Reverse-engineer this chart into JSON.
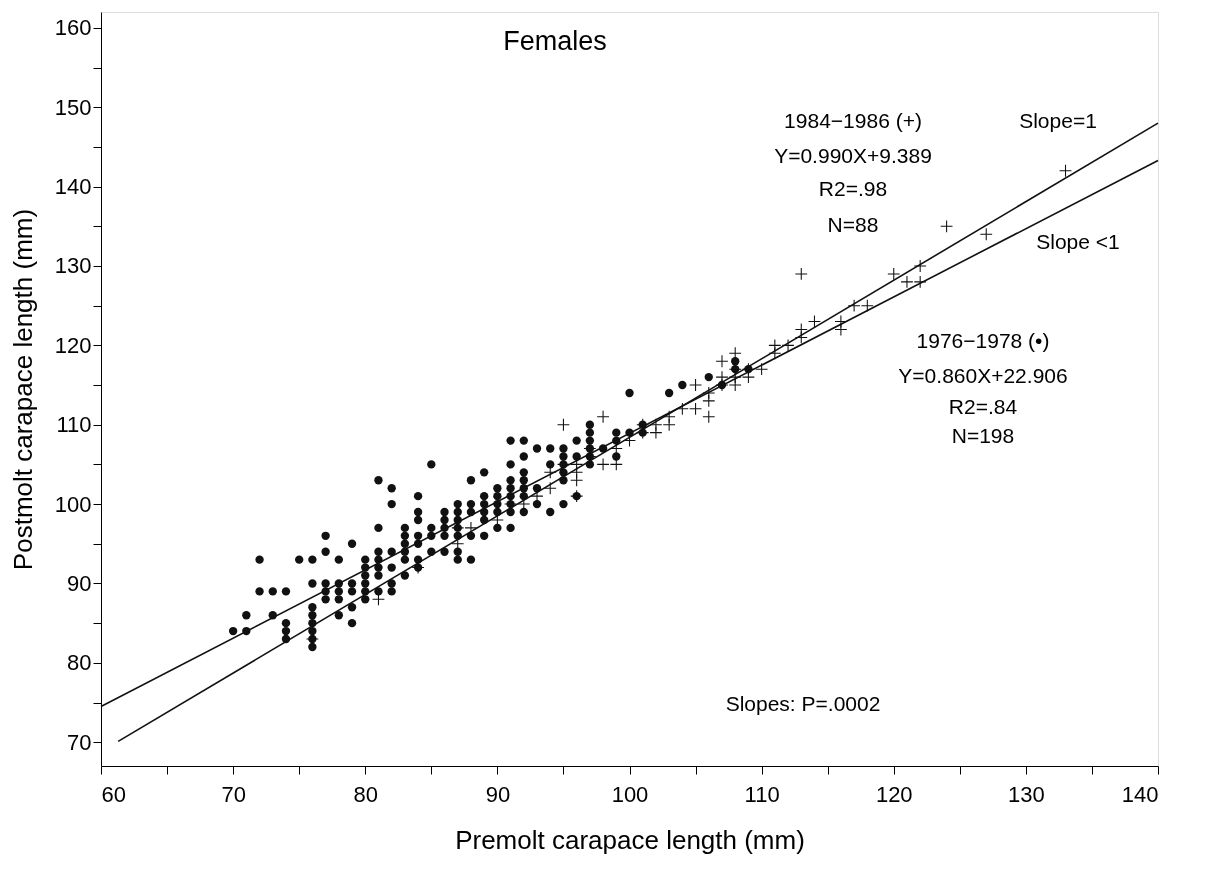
{
  "chart_data": {
    "type": "scatter",
    "title": "Females",
    "xlabel": "Premolt carapace length (mm)",
    "ylabel": "Postmolt carapace length (mm)",
    "xlim": [
      60,
      140
    ],
    "ylim": [
      67,
      162
    ],
    "xticks": [
      60,
      {
        "value": 65,
        "label": null
      },
      70,
      {
        "value": 75,
        "label": null
      },
      80,
      {
        "value": 85,
        "label": null
      },
      90,
      {
        "value": 95,
        "label": null
      },
      100,
      {
        "value": 105,
        "label": null
      },
      110,
      {
        "value": 115,
        "label": null
      },
      120,
      {
        "value": 125,
        "label": null
      },
      130,
      {
        "value": 135,
        "label": null
      },
      140
    ],
    "yticks": [
      70,
      {
        "value": 75,
        "label": null
      },
      80,
      {
        "value": 85,
        "label": null
      },
      90,
      {
        "value": 95,
        "label": null
      },
      100,
      {
        "value": 105,
        "label": null
      },
      110,
      {
        "value": 115,
        "label": null
      },
      120,
      {
        "value": 125,
        "label": null
      },
      130,
      {
        "value": 135,
        "label": null
      },
      140,
      {
        "value": 145,
        "label": null
      },
      150,
      {
        "value": 155,
        "label": null
      },
      160
    ],
    "grid": false,
    "series": [
      {
        "type": "scatter",
        "marker": "circle",
        "color": "#111111",
        "x": [
          70,
          71,
          71,
          72,
          72,
          73,
          73,
          74,
          74,
          74,
          74,
          75,
          76,
          76,
          76,
          76,
          76,
          76,
          76,
          76,
          77,
          77,
          77,
          77,
          77,
          78,
          78,
          78,
          78,
          78,
          79,
          79,
          79,
          79,
          79,
          80,
          80,
          80,
          80,
          80,
          80,
          81,
          81,
          81,
          81,
          81,
          81,
          81,
          82,
          82,
          82,
          82,
          82,
          82,
          83,
          83,
          83,
          83,
          83,
          83,
          84,
          84,
          84,
          84,
          84,
          84,
          84,
          85,
          85,
          85,
          85,
          86,
          86,
          86,
          86,
          86,
          87,
          87,
          87,
          87,
          87,
          87,
          87,
          88,
          88,
          88,
          88,
          88,
          89,
          89,
          89,
          89,
          89,
          89,
          90,
          90,
          90,
          90,
          90,
          91,
          91,
          91,
          91,
          91,
          91,
          91,
          91,
          92,
          92,
          92,
          92,
          92,
          92,
          92,
          93,
          93,
          93,
          94,
          94,
          94,
          95,
          95,
          95,
          95,
          95,
          95,
          96,
          96,
          96,
          97,
          97,
          97,
          97,
          97,
          97,
          98,
          99,
          99,
          99,
          100,
          100,
          101,
          101,
          103,
          104,
          106,
          107,
          108,
          108,
          109
        ],
        "values": [
          84,
          84,
          86,
          89,
          93,
          86,
          89,
          83,
          84,
          85,
          89,
          93,
          82,
          83,
          84,
          85,
          86,
          87,
          90,
          93,
          88,
          89,
          90,
          94,
          96,
          86,
          88,
          89,
          90,
          93,
          85,
          87,
          89,
          90,
          95,
          88,
          89,
          90,
          91,
          92,
          93,
          89,
          91,
          92,
          93,
          94,
          97,
          103,
          89,
          90,
          92,
          94,
          100,
          102,
          91,
          93,
          94,
          95,
          96,
          97,
          92,
          93,
          95,
          96,
          98,
          99,
          101,
          94,
          96,
          97,
          105,
          94,
          96,
          97,
          98,
          99,
          93,
          94,
          96,
          97,
          98,
          99,
          100,
          93,
          96,
          99,
          100,
          103,
          96,
          98,
          99,
          100,
          101,
          104,
          97,
          99,
          100,
          101,
          102,
          97,
          99,
          100,
          101,
          102,
          103,
          105,
          108,
          99,
          101,
          102,
          103,
          104,
          106,
          108,
          100,
          102,
          107,
          99,
          105,
          107,
          100,
          103,
          104,
          105,
          106,
          107,
          101,
          106,
          108,
          105,
          106,
          107,
          108,
          109,
          110,
          107,
          106,
          108,
          109,
          109,
          114,
          110,
          109,
          114,
          115,
          116,
          115,
          118,
          117,
          117
        ]
      },
      {
        "type": "scatter",
        "marker": "cross",
        "color": "#111111",
        "x": [
          76,
          81,
          84,
          87,
          87,
          88,
          90,
          91,
          92,
          93,
          94,
          94,
          95,
          95,
          96,
          96,
          96,
          96,
          97,
          97,
          98,
          98,
          99,
          99,
          100,
          101,
          101,
          102,
          102,
          103,
          103,
          104,
          105,
          105,
          106,
          106,
          106,
          107,
          107,
          107,
          108,
          108,
          108,
          108,
          109,
          109,
          110,
          111,
          111,
          112,
          113,
          113,
          113,
          114,
          116,
          116,
          117,
          118,
          120,
          121,
          122,
          122,
          124,
          127,
          133
        ],
        "values": [
          83,
          88,
          92,
          95,
          97,
          97,
          98,
          100,
          100,
          101,
          102,
          104,
          105,
          110,
          101,
          103,
          104,
          105,
          106,
          107,
          105,
          111,
          105,
          107,
          108,
          109,
          110,
          109,
          110,
          110,
          111,
          112,
          112,
          115,
          111,
          113,
          114,
          115,
          116,
          118,
          115,
          116,
          117,
          119,
          116,
          117,
          117,
          119,
          120,
          120,
          121,
          122,
          129,
          123,
          122,
          123,
          125,
          125,
          129,
          128,
          128,
          130,
          135,
          134,
          142
        ]
      },
      {
        "type": "line",
        "color": "#111111",
        "x": [
          61.3,
          140
        ],
        "values": [
          70.1,
          148.0
        ]
      },
      {
        "type": "line",
        "color": "#111111",
        "x": [
          60,
          140
        ],
        "values": [
          74.5,
          143.3
        ]
      }
    ],
    "annotations": [
      "1984−1986 (+)",
      "Y=0.990X+9.389",
      "R2=.98",
      "N=88",
      "Slope=1",
      "Slope <1",
      "1976−1978 (•)",
      "Y=0.860X+22.906",
      "R2=.84",
      "N=198",
      "Slopes: P=.0002"
    ]
  }
}
